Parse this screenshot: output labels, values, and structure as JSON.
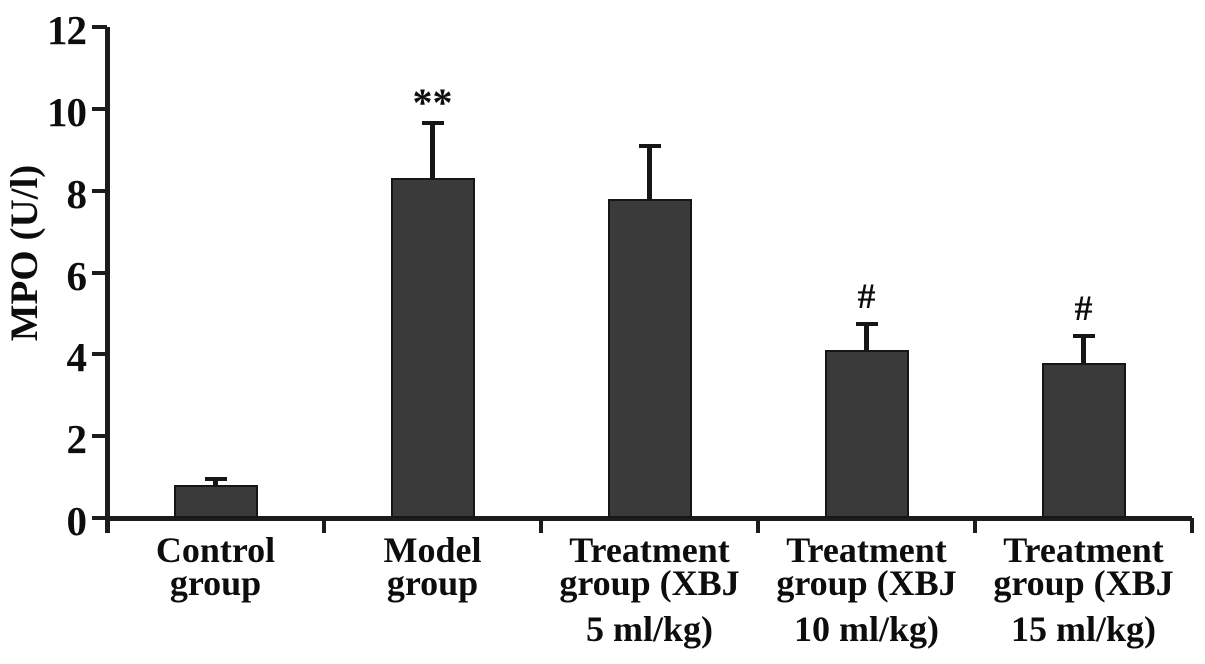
{
  "chart_data": {
    "type": "bar",
    "title": "",
    "ylabel": "MPO (U/l)",
    "xlabel": "",
    "ylim": [
      0,
      12
    ],
    "yticks": [
      0,
      2,
      4,
      6,
      8,
      10,
      12
    ],
    "grid": false,
    "legend": null,
    "categories": [
      "Control group",
      "Model group",
      "Treatment group (XBJ 5 ml/kg)",
      "Treatment group (XBJ 10 ml/kg)",
      "Treatment group (XBJ 15 ml/kg)"
    ],
    "category_label_lines": [
      [
        "Control",
        "group"
      ],
      [
        "Model",
        "group"
      ],
      [
        "Treatment",
        "group (XBJ",
        "5 ml/kg)"
      ],
      [
        "Treatment",
        "group (XBJ",
        "10 ml/kg)"
      ],
      [
        "Treatment",
        "group (XBJ",
        "15 ml/kg)"
      ]
    ],
    "values": [
      0.8,
      8.3,
      7.8,
      4.1,
      3.8
    ],
    "errors_plus": [
      0.2,
      1.4,
      1.35,
      0.7,
      0.7
    ],
    "annotations": [
      "",
      "**",
      "",
      "#",
      "#"
    ],
    "colors": {
      "bar_fill": "#3a3a3a",
      "bar_border": "#161616",
      "axis": "#1c1c1c",
      "text": "#0d0d0d",
      "background": "#ffffff"
    }
  }
}
